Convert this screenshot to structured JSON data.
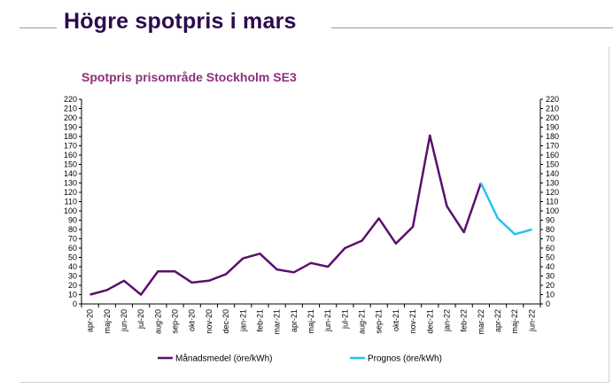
{
  "page": {
    "headline": "Högre spotpris i mars"
  },
  "chart_data": {
    "type": "line",
    "title": "Spotpris prisområde Stockholm SE3",
    "categories": [
      "apr-20",
      "maj-20",
      "jun-20",
      "jul-20",
      "aug-20",
      "sep-20",
      "okt-20",
      "nov-20",
      "dec-20",
      "jan-21",
      "feb-21",
      "mar-21",
      "apr-21",
      "maj-21",
      "jun-21",
      "jul-21",
      "aug-21",
      "sep-21",
      "okt-21",
      "nov-21",
      "dec-21",
      "jan-22",
      "feb-22",
      "mar-22",
      "apr-22",
      "maj-22",
      "jun-22"
    ],
    "series": [
      {
        "name": "Månadsmedel (öre/kWh)",
        "color": "#5b0f6e",
        "values": [
          10,
          15,
          25,
          10,
          35,
          35,
          23,
          25,
          32,
          49,
          54,
          37,
          34,
          44,
          40,
          60,
          68,
          92,
          65,
          83,
          181,
          105,
          77,
          130,
          null,
          null,
          null
        ]
      },
      {
        "name": "Prognos (öre/kWh)",
        "color": "#22c4f0",
        "values": [
          null,
          null,
          null,
          null,
          null,
          null,
          null,
          null,
          null,
          null,
          null,
          null,
          null,
          null,
          null,
          null,
          null,
          null,
          null,
          null,
          null,
          null,
          null,
          130,
          92,
          75,
          80
        ]
      }
    ],
    "ylim": [
      0,
      220
    ],
    "ytick_step": 10,
    "right_axis": true,
    "grid": false,
    "legend": "bottom"
  }
}
